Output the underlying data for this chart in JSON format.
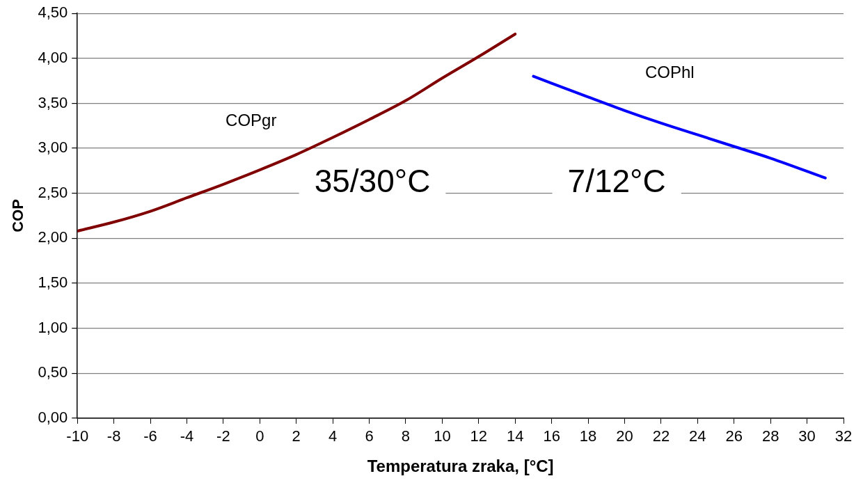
{
  "chart_data": {
    "type": "line",
    "xlabel": "Temperatura zraka, [°C]",
    "ylabel": "COP",
    "xlim": [
      -10,
      32
    ],
    "xticks": [
      -10,
      -8,
      -6,
      -4,
      -2,
      0,
      2,
      4,
      6,
      8,
      10,
      12,
      14,
      16,
      18,
      20,
      22,
      24,
      26,
      28,
      30,
      32
    ],
    "ylim": [
      0,
      4.5
    ],
    "yticks": [
      {
        "value": 0,
        "label": "0,00"
      },
      {
        "value": 0.5,
        "label": "0,50"
      },
      {
        "value": 1,
        "label": "1,00"
      },
      {
        "value": 1.5,
        "label": "1,50"
      },
      {
        "value": 2,
        "label": "2,00"
      },
      {
        "value": 2.5,
        "label": "2,50"
      },
      {
        "value": 3,
        "label": "3,00"
      },
      {
        "value": 3.5,
        "label": "3,50"
      },
      {
        "value": 4,
        "label": "4,00"
      },
      {
        "value": 4.5,
        "label": "4,50"
      }
    ],
    "grid": "y",
    "legend": false,
    "marker": "none",
    "line_style": "solid",
    "series": [
      {
        "name": "COPgr",
        "color": "#800000",
        "x": [
          -10,
          -8,
          -6,
          -4,
          -2,
          0,
          2,
          4,
          6,
          8,
          10,
          12,
          14
        ],
        "values": [
          2.08,
          2.18,
          2.3,
          2.45,
          2.6,
          2.76,
          2.93,
          3.12,
          3.32,
          3.53,
          3.78,
          4.02,
          4.27
        ]
      },
      {
        "name": "COPhl",
        "color": "#0000ff",
        "x": [
          15,
          18,
          20,
          22,
          24,
          26,
          28,
          31
        ],
        "values": [
          3.8,
          3.57,
          3.42,
          3.28,
          3.15,
          3.02,
          2.89,
          2.67
        ]
      }
    ],
    "annotations": [
      "35/30°C",
      "7/12°C"
    ]
  }
}
